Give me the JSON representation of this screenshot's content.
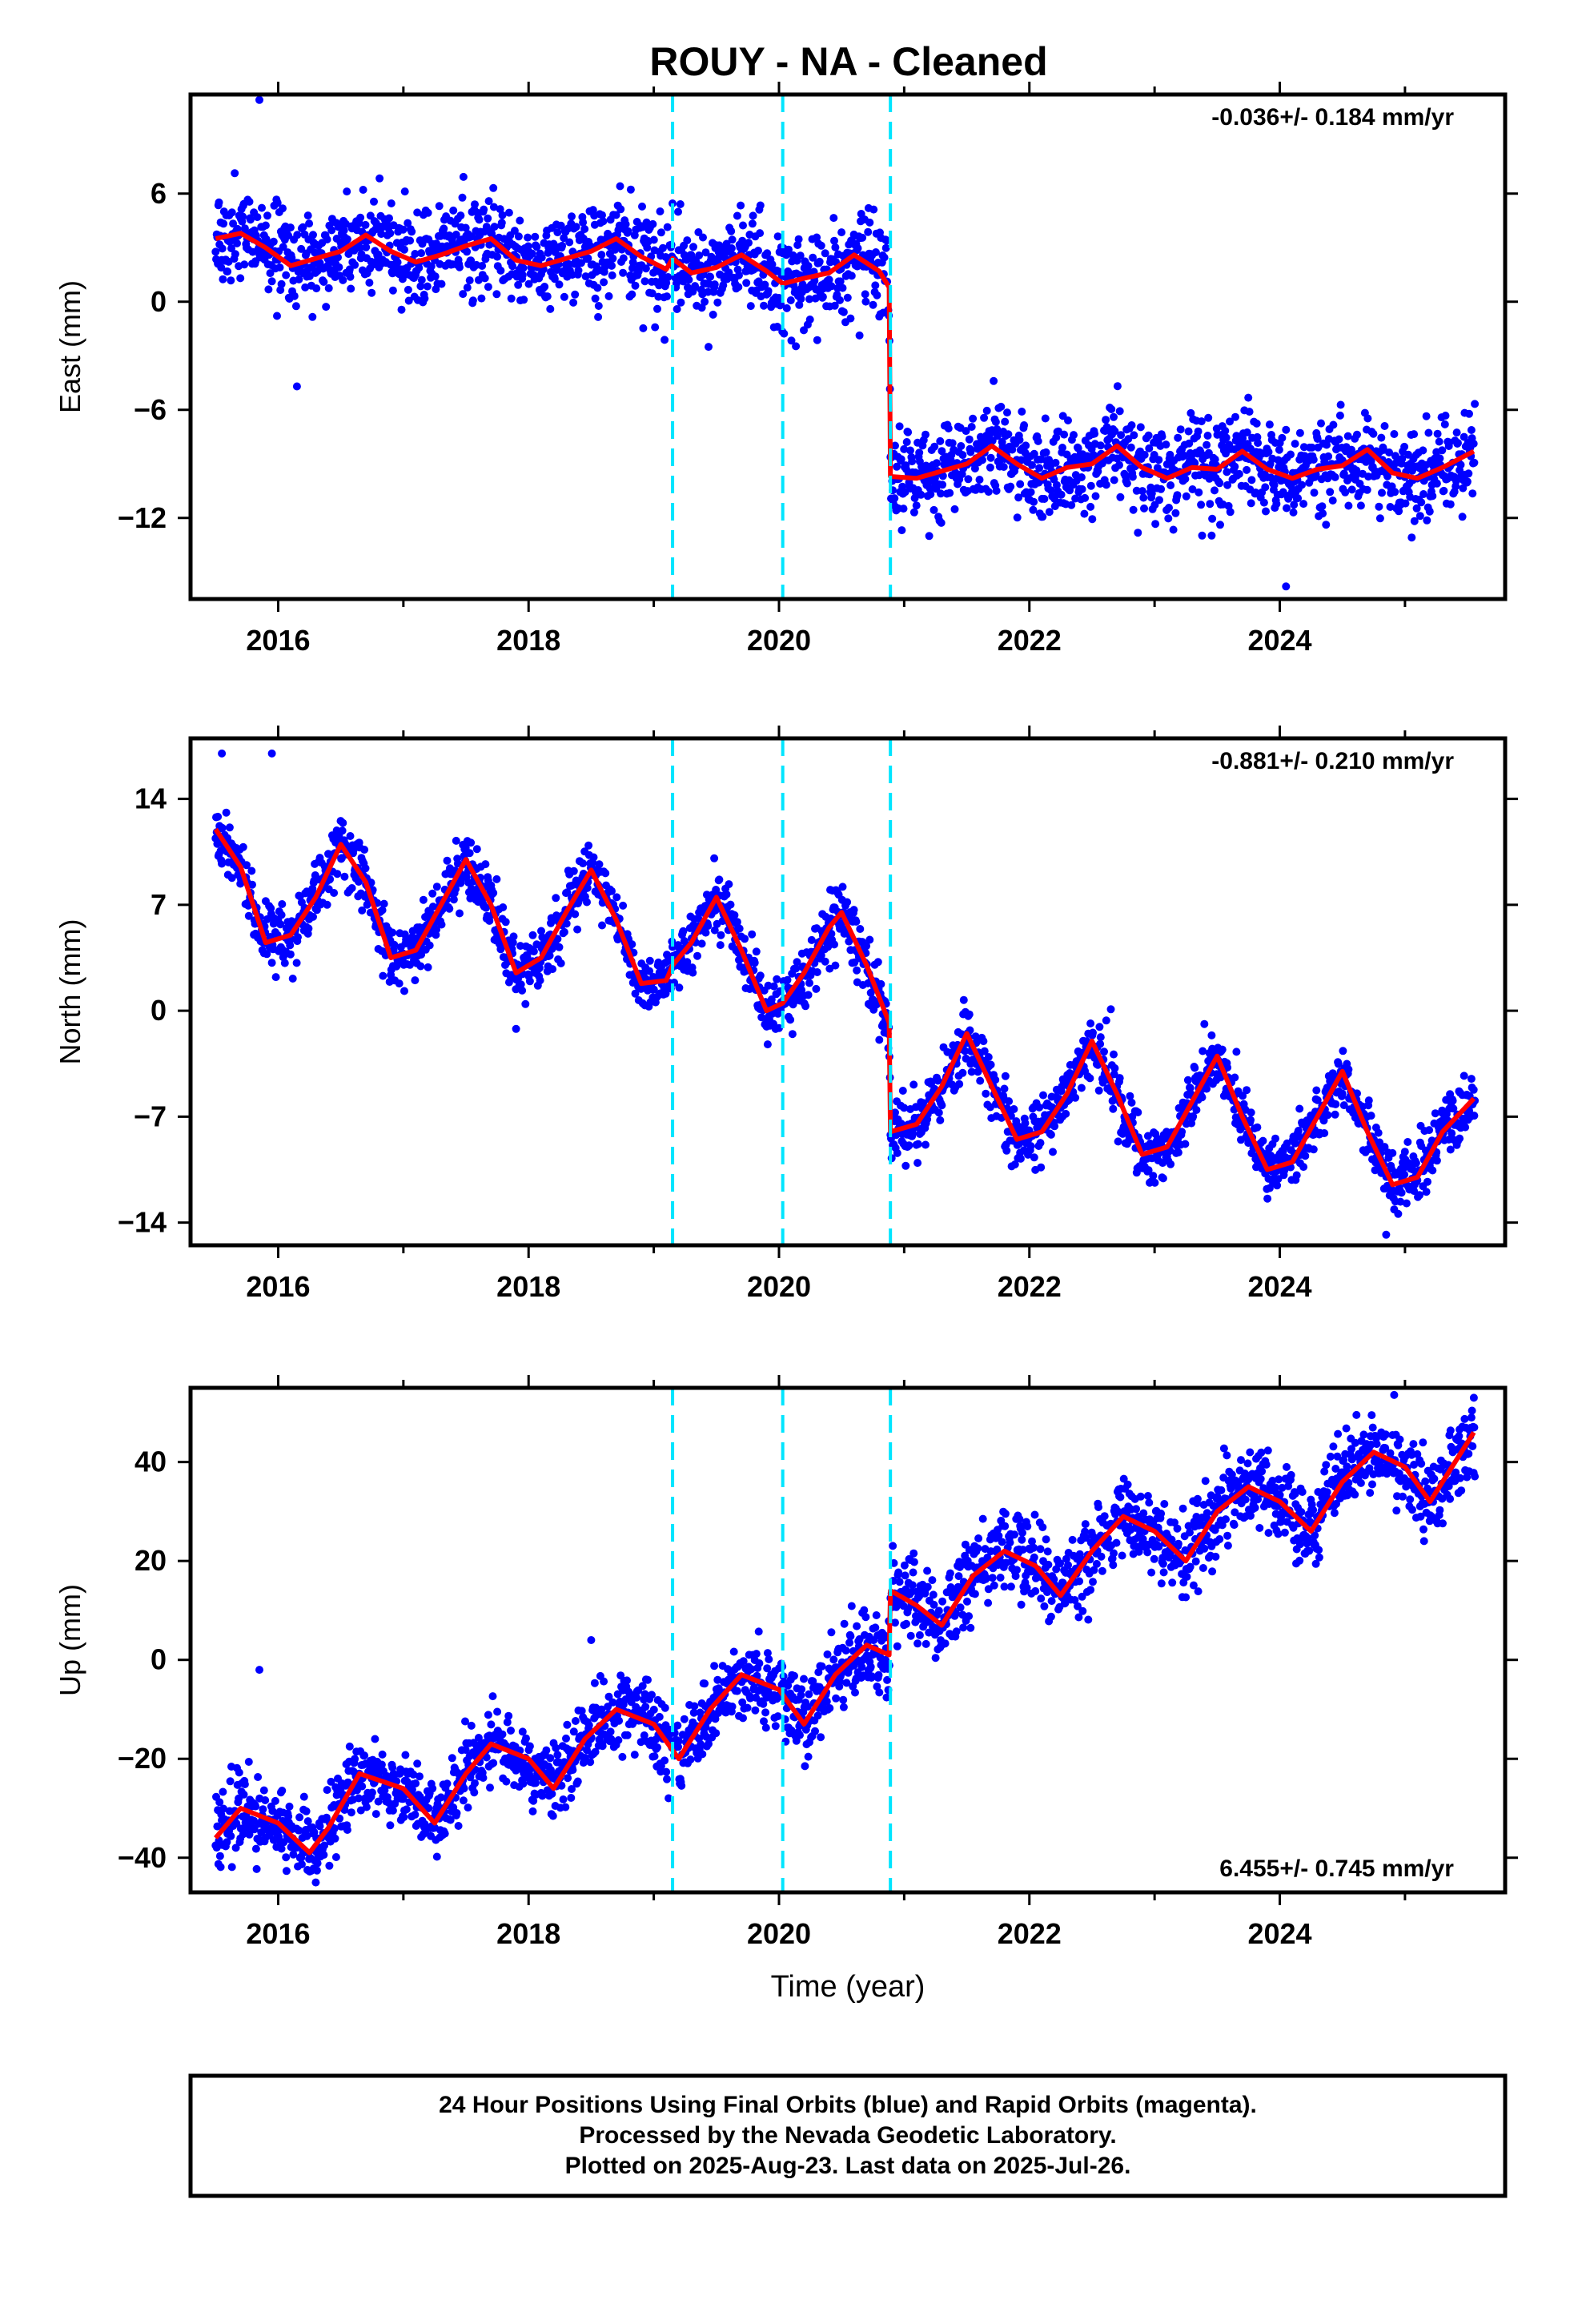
{
  "figure": {
    "title": "ROUY  - NA - Cleaned",
    "footer": [
      "24 Hour Positions Using Final Orbits (blue) and Rapid Orbits (magenta).",
      "Processed by the Nevada Geodetic Laboratory.",
      "Plotted on 2025-Aug-23. Last data on 2025-Jul-26."
    ],
    "colors": {
      "data": "#0000ff",
      "model": "#ff0000",
      "steps": "#00e5ff",
      "axes": "#000000"
    }
  },
  "chart_data": [
    {
      "type": "scatter",
      "component": "East",
      "ylabel": "East (mm)",
      "xlabel": "",
      "xlim": [
        2015.3,
        2025.8
      ],
      "ylim": [
        -16.5,
        11.5
      ],
      "xticks": [
        2016,
        2018,
        2020,
        2022,
        2024
      ],
      "xtick_labels": [
        "2016",
        "2018",
        "2020",
        "2022",
        "2024"
      ],
      "yticks": [
        6,
        0,
        -6,
        -12
      ],
      "ytick_labels": [
        "6",
        "0",
        "−6",
        "−12"
      ],
      "rate_label": "-0.036+/- 0.184 mm/yr",
      "rate_position": "top-right",
      "step_lines_x": [
        2019.15,
        2020.03,
        2020.89
      ],
      "model": {
        "x": [
          2015.5,
          2015.7,
          2015.9,
          2016.1,
          2016.3,
          2016.5,
          2016.7,
          2016.9,
          2017.1,
          2017.3,
          2017.5,
          2017.7,
          2017.9,
          2018.1,
          2018.3,
          2018.5,
          2018.7,
          2018.9,
          2019.1,
          2019.15,
          2019.3,
          2019.5,
          2019.7,
          2019.9,
          2020.03,
          2020.2,
          2020.4,
          2020.6,
          2020.8,
          2020.88,
          2020.89,
          2021.1,
          2021.3,
          2021.5,
          2021.7,
          2021.9,
          2022.1,
          2022.3,
          2022.5,
          2022.7,
          2022.9,
          2023.1,
          2023.3,
          2023.5,
          2023.7,
          2023.9,
          2024.1,
          2024.3,
          2024.5,
          2024.7,
          2024.9,
          2025.1,
          2025.3,
          2025.55
        ],
        "y": [
          3.5,
          3.8,
          3.0,
          2.0,
          2.4,
          2.8,
          3.7,
          2.8,
          2.2,
          2.6,
          3.1,
          3.5,
          2.3,
          2.0,
          2.4,
          2.8,
          3.5,
          2.5,
          1.8,
          2.4,
          1.6,
          1.9,
          2.6,
          1.7,
          1.0,
          1.3,
          1.6,
          2.6,
          1.7,
          0.8,
          -9.7,
          -9.8,
          -9.4,
          -9.0,
          -8.0,
          -9.0,
          -9.8,
          -9.2,
          -9.0,
          -8.0,
          -9.2,
          -9.8,
          -9.2,
          -9.3,
          -8.3,
          -9.3,
          -9.8,
          -9.3,
          -9.1,
          -8.2,
          -9.5,
          -9.8,
          -9.2,
          -8.3
        ]
      },
      "noise_mm": 1.3,
      "outliers": [
        {
          "x": 2015.85,
          "y": 11.2
        },
        {
          "x": 2016.15,
          "y": -4.7
        },
        {
          "x": 2024.05,
          "y": -15.8
        },
        {
          "x": 2021.2,
          "y": -13.0
        }
      ]
    },
    {
      "type": "scatter",
      "component": "North",
      "ylabel": "North (mm)",
      "xlabel": "",
      "xlim": [
        2015.3,
        2025.8
      ],
      "ylim": [
        -15.5,
        18.0
      ],
      "xticks": [
        2016,
        2018,
        2020,
        2022,
        2024
      ],
      "xtick_labels": [
        "2016",
        "2018",
        "2020",
        "2022",
        "2024"
      ],
      "yticks": [
        14,
        7,
        0,
        -7,
        -14
      ],
      "ytick_labels": [
        "14",
        "7",
        "0",
        "−7",
        "−14"
      ],
      "rate_label": "-0.881+/- 0.210 mm/yr",
      "rate_position": "top-right",
      "step_lines_x": [
        2019.15,
        2020.03,
        2020.89
      ],
      "model": {
        "x": [
          2015.5,
          2015.7,
          2015.9,
          2016.1,
          2016.3,
          2016.5,
          2016.7,
          2016.9,
          2017.1,
          2017.3,
          2017.5,
          2017.7,
          2017.9,
          2018.1,
          2018.3,
          2018.5,
          2018.7,
          2018.9,
          2019.1,
          2019.15,
          2019.3,
          2019.5,
          2019.7,
          2019.9,
          2020.03,
          2020.2,
          2020.4,
          2020.5,
          2020.7,
          2020.88,
          2020.89,
          2021.1,
          2021.3,
          2021.5,
          2021.7,
          2021.9,
          2022.1,
          2022.3,
          2022.5,
          2022.7,
          2022.9,
          2023.1,
          2023.3,
          2023.5,
          2023.7,
          2023.9,
          2024.1,
          2024.3,
          2024.5,
          2024.7,
          2024.9,
          2025.1,
          2025.3,
          2025.55
        ],
        "y": [
          12.0,
          9.5,
          4.5,
          5.0,
          7.5,
          11.0,
          8.5,
          3.5,
          4.0,
          7.0,
          10.0,
          7.0,
          2.5,
          3.5,
          6.5,
          9.3,
          6.0,
          1.8,
          2.0,
          3.0,
          4.5,
          7.5,
          4.0,
          0.0,
          0.5,
          2.5,
          5.5,
          6.5,
          3.0,
          -0.8,
          -8.0,
          -7.5,
          -5.0,
          -1.5,
          -5.0,
          -8.5,
          -8.0,
          -5.5,
          -2.0,
          -5.5,
          -9.5,
          -9.0,
          -6.0,
          -3.0,
          -7.0,
          -10.5,
          -10.0,
          -7.0,
          -4.0,
          -8.0,
          -11.5,
          -11.0,
          -8.0,
          -5.8
        ]
      },
      "noise_mm": 1.0,
      "outliers": [
        {
          "x": 2015.55,
          "y": 17.0
        },
        {
          "x": 2015.95,
          "y": 17.0
        },
        {
          "x": 2024.85,
          "y": -14.8
        },
        {
          "x": 2017.9,
          "y": -1.2
        }
      ]
    },
    {
      "type": "scatter",
      "component": "Up",
      "ylabel": "Up (mm)",
      "xlabel": "Time (year)",
      "xlim": [
        2015.3,
        2025.8
      ],
      "ylim": [
        -47,
        55
      ],
      "xticks": [
        2016,
        2018,
        2020,
        2022,
        2024
      ],
      "xtick_labels": [
        "2016",
        "2018",
        "2020",
        "2022",
        "2024"
      ],
      "yticks": [
        40,
        20,
        0,
        -20,
        -40
      ],
      "ytick_labels": [
        "40",
        "20",
        "0",
        "−20",
        "−40"
      ],
      "rate_label": "6.455+/- 0.745 mm/yr",
      "rate_position": "bottom-right",
      "step_lines_x": [
        2019.15,
        2020.03,
        2020.89
      ],
      "model": {
        "x": [
          2015.5,
          2015.7,
          2016.0,
          2016.25,
          2016.4,
          2016.65,
          2017.0,
          2017.25,
          2017.5,
          2017.7,
          2018.0,
          2018.2,
          2018.45,
          2018.7,
          2019.0,
          2019.2,
          2019.45,
          2019.7,
          2020.0,
          2020.2,
          2020.45,
          2020.7,
          2020.88,
          2020.89,
          2021.1,
          2021.3,
          2021.55,
          2021.8,
          2022.05,
          2022.25,
          2022.5,
          2022.75,
          2023.0,
          2023.25,
          2023.5,
          2023.75,
          2024.0,
          2024.25,
          2024.5,
          2024.75,
          2025.0,
          2025.2,
          2025.55
        ],
        "y": [
          -36,
          -30,
          -33,
          -39,
          -34,
          -23,
          -26,
          -33,
          -23,
          -17,
          -20,
          -26,
          -16,
          -10,
          -13,
          -20,
          -10,
          -3,
          -6,
          -13,
          -3,
          3,
          1,
          14,
          11,
          7,
          17,
          22,
          19,
          13,
          22,
          29,
          26,
          20,
          30,
          35,
          32,
          26,
          36,
          42,
          39,
          32,
          46
        ]
      },
      "noise_mm": 4.0,
      "outliers": [
        {
          "x": 2015.85,
          "y": -2.0
        },
        {
          "x": 2018.5,
          "y": 4.0
        },
        {
          "x": 2025.55,
          "y": 53.0
        },
        {
          "x": 2016.3,
          "y": -45.0
        }
      ]
    }
  ]
}
